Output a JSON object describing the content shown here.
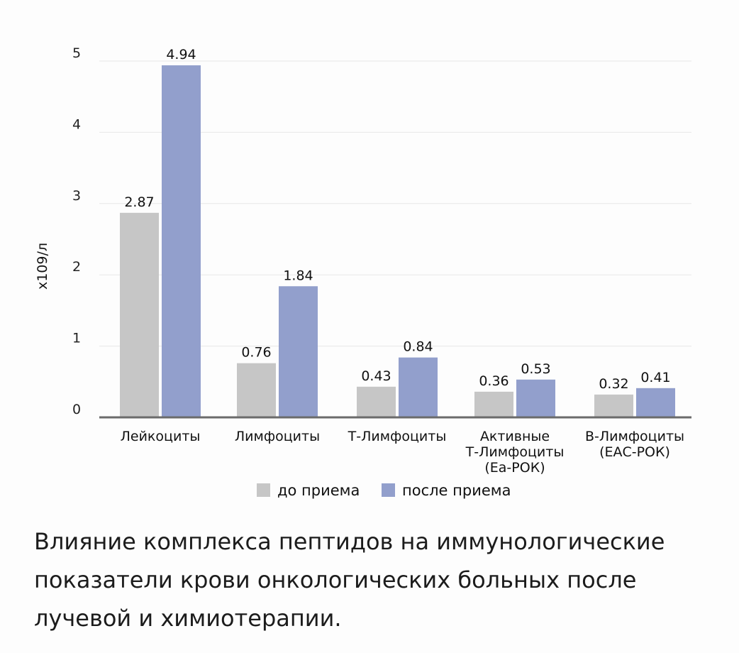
{
  "chart_data": {
    "type": "bar",
    "categories": [
      [
        "Лейкоциты"
      ],
      [
        "Лимфоциты"
      ],
      [
        "Т-Лимфоциты"
      ],
      [
        "Активные",
        "Т-Лимфоциты",
        "(Еа-РОК)"
      ],
      [
        "В-Лимфоциты",
        "(ЕАС-РОК)"
      ]
    ],
    "series": [
      {
        "name": "до приема",
        "color": "#c6c6c6",
        "values": [
          2.87,
          0.76,
          0.43,
          0.36,
          0.32
        ]
      },
      {
        "name": "после приема",
        "color": "#929fcc",
        "values": [
          4.94,
          1.84,
          0.84,
          0.53,
          0.41
        ]
      }
    ],
    "ylabel": "х109/л",
    "ylim": [
      0,
      5
    ],
    "yticks": [
      "0",
      "1",
      "2",
      "3",
      "4",
      "5"
    ],
    "grid": true,
    "legend": "bottom"
  },
  "caption": "Влияние комплекса пептидов на иммунологические показатели крови онкологических больных после лучевой и химиотерапии."
}
